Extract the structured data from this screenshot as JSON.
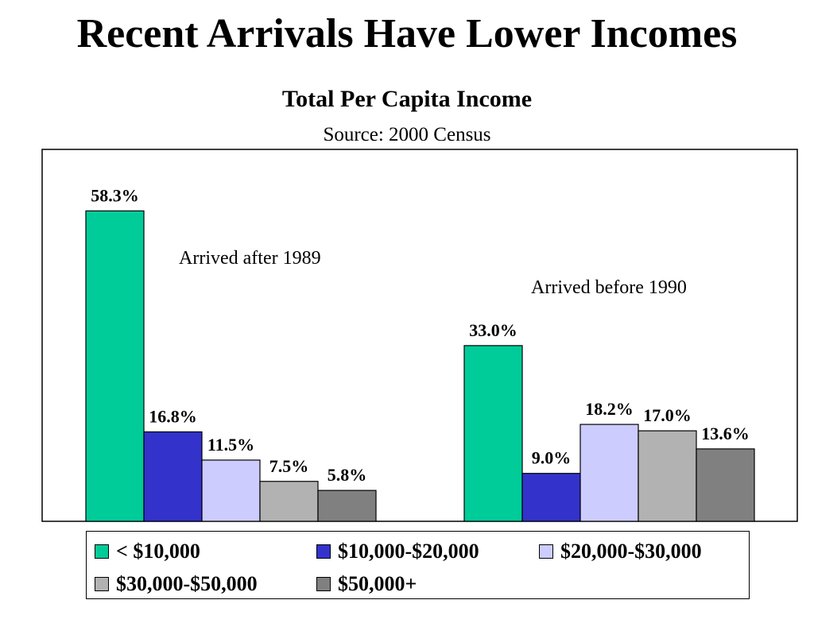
{
  "slide": {
    "title": "Recent Arrivals Have Lower Incomes"
  },
  "chart_data": {
    "type": "bar",
    "title": "Total Per Capita Income",
    "subtitle": "Source: 2000 Census",
    "xlabel": "",
    "ylabel": "",
    "ylim": [
      0,
      66
    ],
    "grid": false,
    "legend_position": "bottom",
    "categories": [
      "Arrived after 1989",
      "Arrived before 1990"
    ],
    "series": [
      {
        "name": "< $10,000",
        "color": "#00CC99",
        "values": [
          58.3,
          33.0
        ],
        "labels": [
          "58.3%",
          "33.0%"
        ]
      },
      {
        "name": "$10,000-$20,000",
        "color": "#3333CC",
        "values": [
          16.8,
          9.0
        ],
        "labels": [
          "16.8%",
          "9.0%"
        ]
      },
      {
        "name": "$20,000-$30,000",
        "color": "#CCCCFF",
        "values": [
          11.5,
          18.2
        ],
        "labels": [
          "11.5%",
          "18.2%"
        ]
      },
      {
        "name": "$30,000-$50,000",
        "color": "#B2B2B2",
        "values": [
          7.5,
          17.0
        ],
        "labels": [
          "7.5%",
          "17.0%"
        ]
      },
      {
        "name": "$50,000+",
        "color": "#808080",
        "values": [
          5.8,
          13.6
        ],
        "labels": [
          "5.8%",
          "13.6%"
        ]
      }
    ]
  }
}
